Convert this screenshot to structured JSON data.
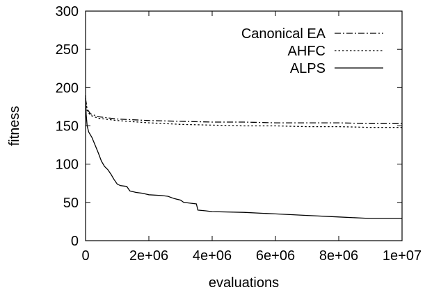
{
  "chart_data": {
    "type": "line",
    "title": "",
    "xlabel": "evaluations",
    "ylabel": "fitness",
    "xlim": [
      0,
      10000000
    ],
    "ylim": [
      0,
      300
    ],
    "xticks": [
      {
        "value": 0,
        "label": "0"
      },
      {
        "value": 2000000,
        "label": "2e+06"
      },
      {
        "value": 4000000,
        "label": "4e+06"
      },
      {
        "value": 6000000,
        "label": "6e+06"
      },
      {
        "value": 8000000,
        "label": "8e+06"
      },
      {
        "value": 10000000,
        "label": "1e+07"
      }
    ],
    "yticks": [
      {
        "value": 0,
        "label": "0"
      },
      {
        "value": 50,
        "label": "50"
      },
      {
        "value": 100,
        "label": "100"
      },
      {
        "value": 150,
        "label": "150"
      },
      {
        "value": 200,
        "label": "200"
      },
      {
        "value": 250,
        "label": "250"
      },
      {
        "value": 300,
        "label": "300"
      }
    ],
    "grid": false,
    "legend_position": "top-right",
    "series": [
      {
        "name": "Canonical EA",
        "dash": "dash-dot",
        "color": "#000000",
        "points": [
          [
            0,
            186
          ],
          [
            50000,
            172
          ],
          [
            150000,
            166
          ],
          [
            400000,
            162
          ],
          [
            1000000,
            159
          ],
          [
            2000000,
            157
          ],
          [
            3000000,
            156
          ],
          [
            4000000,
            155
          ],
          [
            5000000,
            155
          ],
          [
            6000000,
            154
          ],
          [
            7000000,
            154
          ],
          [
            8000000,
            154
          ],
          [
            9000000,
            153
          ],
          [
            10000000,
            153
          ]
        ]
      },
      {
        "name": "AHFC",
        "dash": "dotted",
        "color": "#000000",
        "points": [
          [
            0,
            186
          ],
          [
            50000,
            170
          ],
          [
            150000,
            164
          ],
          [
            400000,
            160
          ],
          [
            1000000,
            157
          ],
          [
            2000000,
            154
          ],
          [
            3000000,
            152
          ],
          [
            4000000,
            151
          ],
          [
            5000000,
            150
          ],
          [
            6000000,
            150
          ],
          [
            7000000,
            149
          ],
          [
            8000000,
            149
          ],
          [
            9000000,
            148
          ],
          [
            10000000,
            148
          ]
        ]
      },
      {
        "name": "ALPS",
        "dash": "solid",
        "color": "#000000",
        "points": [
          [
            0,
            190
          ],
          [
            20000,
            165
          ],
          [
            50000,
            150
          ],
          [
            100000,
            142
          ],
          [
            200000,
            135
          ],
          [
            300000,
            125
          ],
          [
            400000,
            115
          ],
          [
            500000,
            104
          ],
          [
            600000,
            97
          ],
          [
            700000,
            93
          ],
          [
            800000,
            87
          ],
          [
            900000,
            80
          ],
          [
            1000000,
            74
          ],
          [
            1100000,
            72
          ],
          [
            1300000,
            71
          ],
          [
            1400000,
            65
          ],
          [
            1600000,
            63
          ],
          [
            1800000,
            62
          ],
          [
            2000000,
            60
          ],
          [
            2400000,
            59
          ],
          [
            2600000,
            58
          ],
          [
            2800000,
            55
          ],
          [
            3000000,
            53
          ],
          [
            3100000,
            50
          ],
          [
            3300000,
            49
          ],
          [
            3500000,
            48
          ],
          [
            3550000,
            40
          ],
          [
            3800000,
            39
          ],
          [
            4000000,
            38
          ],
          [
            5000000,
            37
          ],
          [
            6000000,
            35
          ],
          [
            7000000,
            33
          ],
          [
            8000000,
            31
          ],
          [
            9000000,
            29
          ],
          [
            10000000,
            29
          ]
        ]
      }
    ]
  }
}
